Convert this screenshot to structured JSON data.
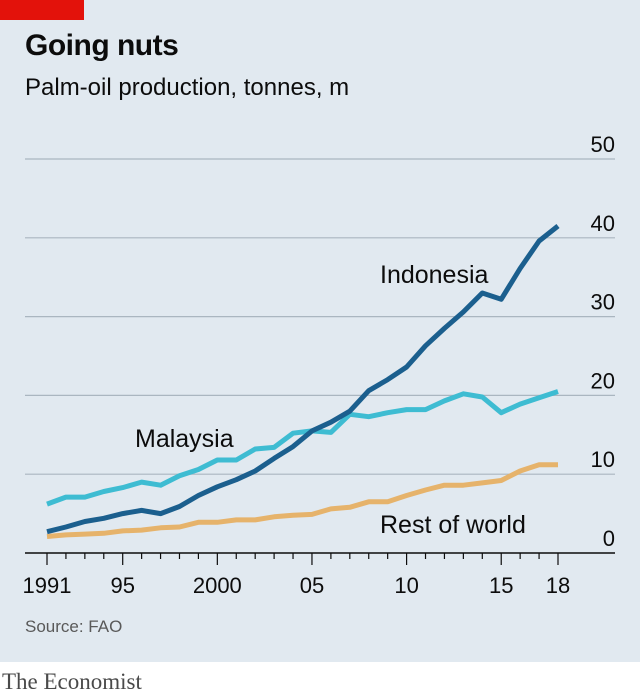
{
  "header": {
    "title": "Going nuts",
    "subtitle": "Palm-oil production, tonnes, m"
  },
  "footer": {
    "source": "Source: FAO",
    "brand": "The Economist"
  },
  "colors": {
    "accent": "#e3120b",
    "background": "#e1e9f0",
    "indonesia": "#1b5f8e",
    "malaysia": "#3ebcd2",
    "rest_of_world": "#e6b36b"
  },
  "chart_data": {
    "type": "line",
    "title": "Going nuts",
    "subtitle": "Palm-oil production, tonnes, m",
    "xlabel": "",
    "ylabel": "",
    "xlim": [
      1991,
      2018
    ],
    "ylim": [
      0,
      50
    ],
    "grid": true,
    "y_axis_side": "right",
    "x_ticks": [
      1991,
      1995,
      2000,
      2005,
      2010,
      2015,
      2018
    ],
    "x_tick_labels": [
      "1991",
      "95",
      "2000",
      "05",
      "10",
      "15",
      "18"
    ],
    "y_ticks": [
      0,
      10,
      20,
      30,
      40,
      50
    ],
    "y_tick_labels": [
      "0",
      "10",
      "20",
      "30",
      "40",
      "50"
    ],
    "x": [
      1991,
      1992,
      1993,
      1994,
      1995,
      1996,
      1997,
      1998,
      1999,
      2000,
      2001,
      2002,
      2003,
      2004,
      2005,
      2006,
      2007,
      2008,
      2009,
      2010,
      2011,
      2012,
      2013,
      2014,
      2015,
      2016,
      2017,
      2018
    ],
    "series": [
      {
        "name": "Indonesia",
        "color": "#1b5f8e",
        "values": [
          2.7,
          3.3,
          4.0,
          4.4,
          5.0,
          5.4,
          5.0,
          5.9,
          7.3,
          8.4,
          9.3,
          10.4,
          12.0,
          13.5,
          15.5,
          16.6,
          18.0,
          20.6,
          22.0,
          23.6,
          26.3,
          28.5,
          30.6,
          33.0,
          32.2,
          36.1,
          39.6,
          41.5
        ]
      },
      {
        "name": "Malaysia",
        "color": "#3ebcd2",
        "values": [
          6.2,
          7.1,
          7.1,
          7.8,
          8.3,
          9.0,
          8.6,
          9.8,
          10.6,
          11.8,
          11.8,
          13.2,
          13.4,
          15.2,
          15.5,
          15.3,
          17.6,
          17.3,
          17.8,
          18.2,
          18.2,
          19.3,
          20.2,
          19.8,
          17.8,
          18.9,
          19.7,
          20.5
        ]
      },
      {
        "name": "Rest of world",
        "color": "#e6b36b",
        "values": [
          2.1,
          2.3,
          2.4,
          2.5,
          2.8,
          2.9,
          3.2,
          3.3,
          3.9,
          3.9,
          4.2,
          4.2,
          4.6,
          4.8,
          4.9,
          5.6,
          5.8,
          6.5,
          6.5,
          7.3,
          8.0,
          8.6,
          8.6,
          8.9,
          9.2,
          10.4,
          11.2,
          11.2
        ]
      }
    ]
  }
}
